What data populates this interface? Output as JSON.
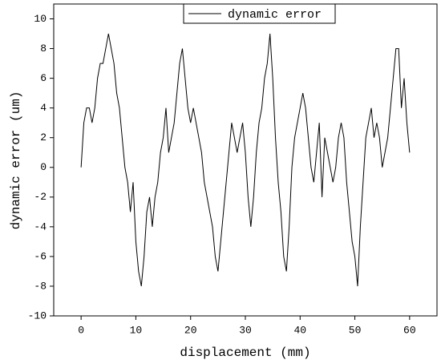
{
  "chart_data": {
    "type": "line",
    "xlabel": "displacement (mm)",
    "ylabel": "dynamic error (um)",
    "xlim": [
      -5,
      65
    ],
    "xticks": [
      0,
      10,
      20,
      30,
      40,
      50,
      60
    ],
    "ylim": [
      -10,
      11
    ],
    "yticks": [
      -10,
      -8,
      -6,
      -4,
      -2,
      0,
      2,
      4,
      6,
      8,
      10
    ],
    "legend": "top",
    "x": [
      0,
      0.5,
      1,
      1.5,
      2,
      2.5,
      3,
      3.5,
      4,
      4.5,
      5,
      5.5,
      6,
      6.5,
      7,
      7.5,
      8,
      8.5,
      9,
      9.5,
      10,
      10.5,
      11,
      11.5,
      12,
      12.5,
      13,
      13.5,
      14,
      14.5,
      15,
      15.5,
      16,
      16.5,
      17,
      17.5,
      18,
      18.5,
      19,
      19.5,
      20,
      20.5,
      21,
      21.5,
      22,
      22.5,
      23,
      23.5,
      24,
      24.5,
      25,
      25.5,
      26,
      26.5,
      27,
      27.5,
      28,
      28.5,
      29,
      29.5,
      30,
      30.5,
      31,
      31.5,
      32,
      32.5,
      33,
      33.5,
      34,
      34.5,
      35,
      35.5,
      36,
      36.5,
      37,
      37.5,
      38,
      38.5,
      39,
      39.5,
      40,
      40.5,
      41,
      41.5,
      42,
      42.5,
      43,
      43.5,
      44,
      44.5,
      45,
      45.5,
      46,
      46.5,
      47,
      47.5,
      48,
      48.5,
      49,
      49.5,
      50,
      50.5,
      51,
      51.5,
      52,
      52.5,
      53,
      53.5,
      54,
      54.5,
      55,
      55.5,
      56,
      56.5,
      57,
      57.5,
      58,
      58.5,
      59,
      59.5,
      60
    ],
    "series": [
      {
        "name": "dynamic error",
        "color": "#000000",
        "values": [
          0,
          3,
          4,
          4,
          3,
          4,
          6,
          7,
          7,
          8,
          9,
          8,
          7,
          5,
          4,
          2,
          0,
          -1,
          -3,
          -1,
          -5,
          -7,
          -8,
          -6,
          -3,
          -2,
          -4,
          -2,
          -1,
          1,
          2,
          4,
          1,
          2,
          3,
          5,
          7,
          8,
          6,
          4,
          3,
          4,
          3,
          2,
          1,
          -1,
          -2,
          -3,
          -4,
          -6,
          -7,
          -5,
          -3,
          -1,
          1,
          3,
          2,
          1,
          2,
          3,
          1,
          -2,
          -4,
          -2,
          1,
          3,
          4,
          6,
          7,
          9,
          6,
          2,
          -1,
          -3,
          -6,
          -7,
          -4,
          0,
          2,
          3,
          4,
          5,
          4,
          2,
          0,
          -1,
          1,
          3,
          -2,
          2,
          1,
          0,
          -1,
          0,
          2,
          3,
          2,
          -1,
          -3,
          -5,
          -6,
          -8,
          -4,
          -1,
          2,
          3,
          4,
          2,
          3,
          2,
          0,
          1,
          2,
          4,
          6,
          8,
          8,
          4,
          6,
          3,
          1
        ]
      }
    ]
  }
}
